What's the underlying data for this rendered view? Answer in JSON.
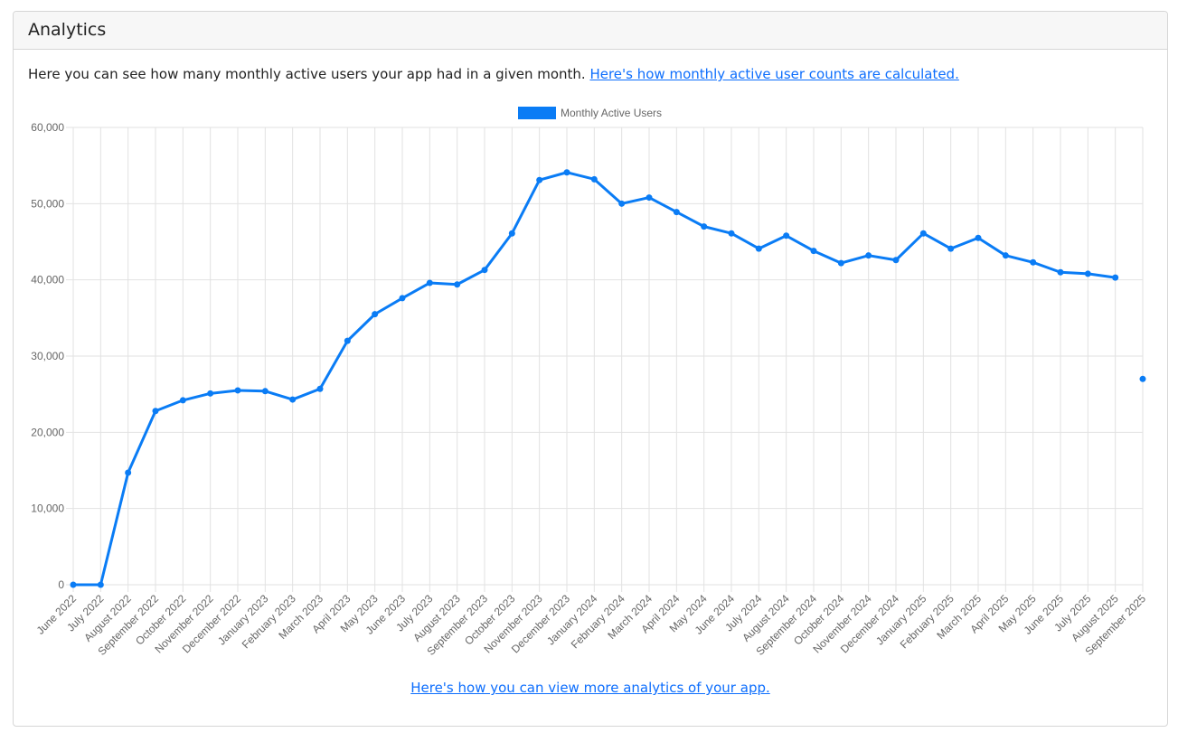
{
  "card": {
    "title": "Analytics",
    "intro_text": "Here you can see how many monthly active users your app had in a given month. ",
    "intro_link": "Here's how monthly active user counts are calculated.",
    "footer_link": "Here's how you can view more analytics of your app."
  },
  "chart_data": {
    "type": "line",
    "title": "",
    "xlabel": "",
    "ylabel": "",
    "ylim": [
      0,
      60000
    ],
    "yticks": [
      "0",
      "10,000",
      "20,000",
      "30,000",
      "40,000",
      "50,000",
      "60,000"
    ],
    "grid": true,
    "legend_position": "top",
    "color": "#0a7cf5",
    "categories": [
      "June 2022",
      "July 2022",
      "August 2022",
      "September 2022",
      "October 2022",
      "November 2022",
      "December 2022",
      "January 2023",
      "February 2023",
      "March 2023",
      "April 2023",
      "May 2023",
      "June 2023",
      "July 2023",
      "August 2023",
      "September 2023",
      "October 2023",
      "November 2023",
      "December 2023",
      "January 2024",
      "February 2024",
      "March 2024",
      "April 2024",
      "May 2024",
      "June 2024",
      "July 2024",
      "August 2024",
      "September 2024",
      "October 2024",
      "November 2024",
      "December 2024",
      "January 2025",
      "February 2025",
      "March 2025",
      "April 2025",
      "May 2025",
      "June 2025",
      "July 2025",
      "August 2025",
      "September 2025"
    ],
    "series": [
      {
        "name": "Monthly Active Users",
        "values": [
          0,
          0,
          14700,
          22800,
          24200,
          25100,
          25500,
          25400,
          24300,
          25700,
          32000,
          35500,
          37600,
          39600,
          39400,
          41300,
          46100,
          53100,
          54100,
          53200,
          50000,
          50800,
          48900,
          47000,
          46100,
          44100,
          45800,
          43800,
          42200,
          43200,
          42600,
          46100,
          44100,
          45500,
          43200,
          42300,
          41000,
          40800,
          40300,
          27000
        ]
      }
    ]
  }
}
